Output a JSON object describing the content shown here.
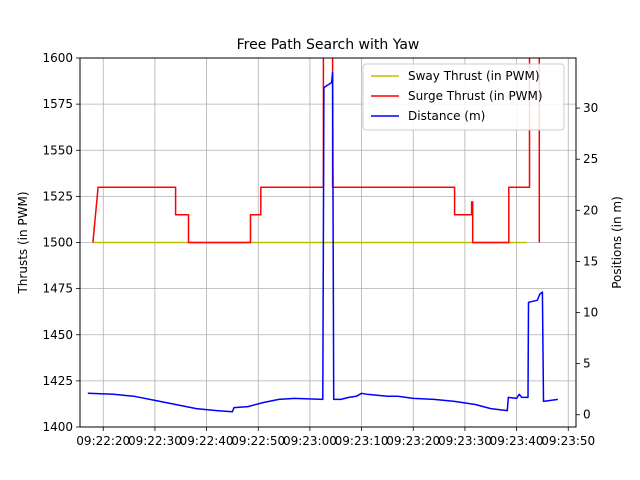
{
  "chart_data": {
    "type": "line",
    "title": "Free Path Search with Yaw",
    "xlabel": "",
    "ylabel": "Thrusts (in PWM)",
    "ylabel_right": "Positions (in m)",
    "x_ticks": [
      "09:22:20",
      "09:22:30",
      "09:22:40",
      "09:22:50",
      "09:23:00",
      "09:23:10",
      "09:23:20",
      "09:23:30",
      "09:23:40",
      "09:23:50"
    ],
    "x_tick_seconds": [
      20,
      30,
      40,
      50,
      60,
      70,
      80,
      90,
      100,
      110
    ],
    "xlim": [
      15.5,
      111.5
    ],
    "ylim": [
      1400,
      1600
    ],
    "y_ticks": [
      1400,
      1425,
      1450,
      1475,
      1500,
      1525,
      1550,
      1575,
      1600
    ],
    "ylim_right": [
      -1.2,
      34.9
    ],
    "y_ticks_right": [
      0,
      5,
      10,
      15,
      20,
      25,
      30
    ],
    "grid": true,
    "legend_position": "top-right",
    "series": [
      {
        "name": "Sway Thrust (in PWM)",
        "axis": "left",
        "color": "#bfbf00",
        "points": [
          [
            18,
            1500
          ],
          [
            102,
            1500
          ]
        ]
      },
      {
        "name": "Surge Thrust (in PWM)",
        "axis": "left",
        "color": "#ff0000",
        "points": [
          [
            18,
            1500
          ],
          [
            19,
            1530
          ],
          [
            34,
            1530
          ],
          [
            34,
            1515
          ],
          [
            36.5,
            1515
          ],
          [
            36.5,
            1500
          ],
          [
            48.5,
            1500
          ],
          [
            48.5,
            1515
          ],
          [
            50.5,
            1515
          ],
          [
            50.5,
            1530
          ],
          [
            62.6,
            1530
          ],
          [
            62.6,
            1610
          ],
          [
            64.4,
            1610
          ],
          [
            64.4,
            1530
          ],
          [
            88,
            1530
          ],
          [
            88,
            1515
          ],
          [
            91.3,
            1515
          ],
          [
            91.3,
            1522
          ],
          [
            91.5,
            1522
          ],
          [
            91.5,
            1500
          ],
          [
            98.5,
            1500
          ],
          [
            98.5,
            1530
          ],
          [
            102.5,
            1530
          ],
          [
            102.5,
            1610
          ],
          [
            104.4,
            1610
          ],
          [
            104.4,
            1500
          ]
        ]
      },
      {
        "name": "Distance (m)",
        "axis": "right",
        "color": "#0000ff",
        "points": [
          [
            17,
            2.1
          ],
          [
            22,
            2.0
          ],
          [
            26,
            1.8
          ],
          [
            30,
            1.4
          ],
          [
            34,
            1.0
          ],
          [
            38,
            0.6
          ],
          [
            42,
            0.4
          ],
          [
            45,
            0.3
          ],
          [
            45.3,
            0.7
          ],
          [
            48,
            0.8
          ],
          [
            51,
            1.2
          ],
          [
            54,
            1.5
          ],
          [
            57,
            1.6
          ],
          [
            62.5,
            1.5
          ],
          [
            62.7,
            32
          ],
          [
            64.2,
            32.5
          ],
          [
            64.4,
            33.5
          ],
          [
            64.6,
            1.5
          ],
          [
            66,
            1.5
          ],
          [
            67.5,
            1.7
          ],
          [
            69,
            1.8
          ],
          [
            70,
            2.1
          ],
          [
            71,
            2.0
          ],
          [
            73,
            1.9
          ],
          [
            75,
            1.8
          ],
          [
            77,
            1.8
          ],
          [
            80,
            1.6
          ],
          [
            84,
            1.5
          ],
          [
            88,
            1.3
          ],
          [
            92,
            1.0
          ],
          [
            95,
            0.6
          ],
          [
            98.2,
            0.4
          ],
          [
            98.4,
            1.7
          ],
          [
            100,
            1.6
          ],
          [
            100.5,
            2.0
          ],
          [
            101,
            1.7
          ],
          [
            102.2,
            1.7
          ],
          [
            102.3,
            11.0
          ],
          [
            104,
            11.2
          ],
          [
            104.5,
            11.8
          ],
          [
            105,
            12.0
          ],
          [
            105.2,
            1.3
          ],
          [
            108,
            1.5
          ]
        ]
      }
    ]
  }
}
